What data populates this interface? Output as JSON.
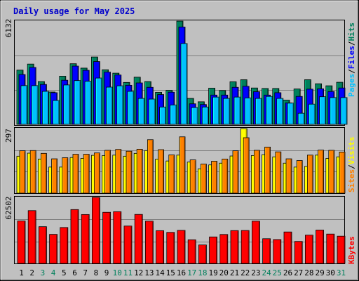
{
  "chart_data": {
    "type": "bar",
    "title": "Daily usage for May 2025",
    "colors": {
      "title": "#0000cc",
      "hits": "#00805c",
      "files": "#0000ff",
      "pages": "#00c0ff",
      "visits": "#ffff00",
      "sites": "#ff8000",
      "kbytes": "#ff0000",
      "weekend_label": "#00805c",
      "weekday_label": "#000000",
      "gridline": "#7f7f7f",
      "panel_bg": "#c0c0c0"
    },
    "categories": [
      "1",
      "2",
      "3",
      "4",
      "5",
      "6",
      "7",
      "8",
      "9",
      "10",
      "11",
      "12",
      "13",
      "14",
      "15",
      "16",
      "17",
      "18",
      "19",
      "20",
      "21",
      "22",
      "23",
      "24",
      "25",
      "26",
      "27",
      "28",
      "29",
      "30",
      "31"
    ],
    "weekend_days": [
      "3",
      "4",
      "10",
      "11",
      "17",
      "18",
      "24",
      "25",
      "31"
    ],
    "panels": [
      {
        "id": "hits-files-pages",
        "y_max_label": "6132",
        "ylim": [
          0,
          6132
        ],
        "legend": [
          "Pages",
          "Files",
          "Hits"
        ],
        "series": [
          {
            "name": "Hits",
            "color": "#00805c",
            "values": [
              3220,
              3580,
              2540,
              1920,
              2860,
              3600,
              3340,
              4000,
              3240,
              3040,
              2490,
              2800,
              2540,
              1900,
              2020,
              6130,
              1540,
              1340,
              2150,
              2010,
              2530,
              2650,
              2160,
              2130,
              2130,
              1440,
              2100,
              2650,
              2410,
              2290,
              2500
            ]
          },
          {
            "name": "Files",
            "color": "#0000ff",
            "values": [
              2960,
              3380,
              2370,
              1880,
              2620,
              3460,
              3210,
              3730,
              3100,
              2930,
              2320,
              2460,
              2200,
              1770,
              1910,
              5780,
              1220,
              1180,
              1740,
              1740,
              2200,
              2260,
              1940,
              1740,
              1880,
              1270,
              1660,
              2090,
              2110,
              1950,
              2160
            ]
          },
          {
            "name": "Pages",
            "color": "#00c0ff",
            "values": [
              2300,
              2300,
              1960,
              1420,
              2340,
              2600,
              2560,
              2750,
              2210,
              2290,
              1960,
              1540,
              1500,
              1030,
              1150,
              4800,
              1000,
              1030,
              1620,
              1540,
              1620,
              1570,
              1540,
              1660,
              1540,
              1260,
              660,
              1200,
              1640,
              1590,
              1590
            ]
          }
        ]
      },
      {
        "id": "visits-sites",
        "y_max_label": "297",
        "ylim": [
          0,
          297
        ],
        "legend": [
          "Sites",
          "Visits"
        ],
        "series": [
          {
            "name": "Visits",
            "color": "#ffff00",
            "values": [
              170,
              184,
              157,
              120,
              120,
              164,
              160,
              174,
              173,
              175,
              170,
              183,
              196,
              156,
              148,
              175,
              143,
              112,
              130,
              138,
              171,
              297,
              173,
              177,
              167,
              138,
              120,
              123,
              175,
              160,
              167
            ]
          },
          {
            "name": "Sites",
            "color": "#ff8000",
            "values": [
              195,
              196,
              183,
              158,
              163,
              179,
              179,
              185,
              197,
              201,
              193,
              202,
              246,
              200,
              176,
              259,
              153,
              134,
              147,
              157,
              195,
              255,
              197,
              212,
              190,
              158,
              150,
              175,
              198,
              197,
              189
            ]
          }
        ]
      },
      {
        "id": "kbytes",
        "y_max_label": "62502",
        "ylim": [
          0,
          62502
        ],
        "legend": [
          "KBytes"
        ],
        "series": [
          {
            "name": "KBytes",
            "color": "#ff0000",
            "values": [
              40200,
              50000,
              34800,
              27500,
              34000,
              51000,
              46300,
              62500,
              48400,
              49000,
              35400,
              46400,
              40000,
              31000,
              29400,
              31300,
              22400,
              17500,
              25100,
              27400,
              31100,
              31200,
              40000,
              23400,
              22600,
              29800,
              20800,
              26800,
              31600,
              27800,
              25800
            ]
          }
        ]
      }
    ]
  }
}
